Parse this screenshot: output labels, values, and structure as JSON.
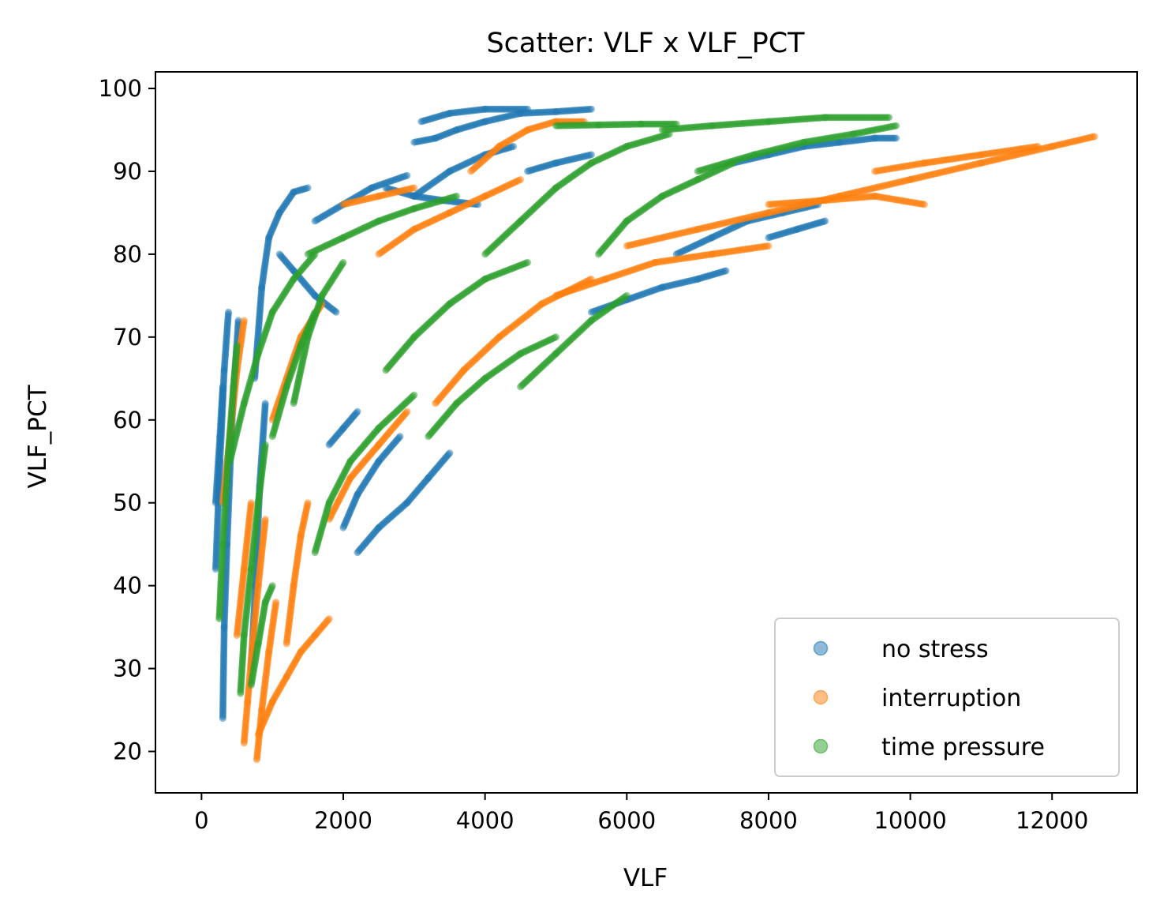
{
  "chart_data": {
    "type": "scatter",
    "title": "Scatter: VLF x VLF_PCT",
    "xlabel": "VLF",
    "ylabel": "VLF_PCT",
    "xlim": [
      -650,
      13200
    ],
    "ylim": [
      15,
      102
    ],
    "xticks": [
      0,
      2000,
      4000,
      6000,
      8000,
      10000,
      12000
    ],
    "xtick_labels": [
      "0",
      "2000",
      "4000",
      "6000",
      "8000",
      "10000",
      "12000"
    ],
    "yticks": [
      20,
      30,
      40,
      50,
      60,
      70,
      80,
      90,
      100
    ],
    "ytick_labels": [
      "20",
      "30",
      "40",
      "50",
      "60",
      "70",
      "80",
      "90",
      "100"
    ],
    "grid": false,
    "legend_position": "lower-right",
    "series": [
      {
        "name": "no stress",
        "color": "#1f77b4",
        "strokes": [
          [
            [
              200,
              42
            ],
            [
              260,
              55
            ],
            [
              320,
              66
            ],
            [
              380,
              73
            ]
          ],
          [
            [
              300,
              24
            ],
            [
              320,
              35
            ],
            [
              360,
              45
            ],
            [
              430,
              60
            ],
            [
              520,
              72
            ]
          ],
          [
            [
              200,
              50
            ],
            [
              260,
              58
            ],
            [
              300,
              64
            ]
          ],
          [
            [
              700,
              30
            ],
            [
              760,
              40
            ],
            [
              820,
              52
            ],
            [
              900,
              62
            ]
          ],
          [
            [
              750,
              65
            ],
            [
              850,
              76
            ],
            [
              950,
              82
            ],
            [
              1100,
              85
            ],
            [
              1300,
              87.5
            ],
            [
              1500,
              88
            ]
          ],
          [
            [
              1600,
              84
            ],
            [
              2000,
              86
            ],
            [
              2400,
              88
            ],
            [
              2900,
              89.5
            ]
          ],
          [
            [
              1100,
              80
            ],
            [
              1300,
              78
            ],
            [
              1600,
              75
            ],
            [
              1900,
              73
            ]
          ],
          [
            [
              1800,
              57
            ],
            [
              2000,
              59
            ],
            [
              2200,
              61
            ]
          ],
          [
            [
              2000,
              47
            ],
            [
              2200,
              51
            ],
            [
              2500,
              55
            ],
            [
              2800,
              58
            ]
          ],
          [
            [
              2200,
              44
            ],
            [
              2500,
              47
            ],
            [
              2900,
              50
            ],
            [
              3200,
              53
            ],
            [
              3500,
              56
            ]
          ],
          [
            [
              2600,
              88
            ],
            [
              3000,
              87
            ],
            [
              3400,
              86.5
            ],
            [
              3900,
              86
            ]
          ],
          [
            [
              3000,
              93.5
            ],
            [
              3300,
              94
            ],
            [
              3600,
              95
            ],
            [
              4000,
              96
            ],
            [
              4500,
              97
            ],
            [
              5000,
              97.2
            ],
            [
              5500,
              97.5
            ]
          ],
          [
            [
              3100,
              96
            ],
            [
              3500,
              97
            ],
            [
              4000,
              97.5
            ],
            [
              4600,
              97.5
            ]
          ],
          [
            [
              3000,
              87
            ],
            [
              3500,
              90
            ],
            [
              4000,
              92
            ],
            [
              4400,
              93
            ]
          ],
          [
            [
              4600,
              90
            ],
            [
              5000,
              91
            ],
            [
              5500,
              92
            ]
          ],
          [
            [
              5500,
              73
            ],
            [
              6000,
              74.5
            ],
            [
              6500,
              76
            ],
            [
              7000,
              77
            ],
            [
              7400,
              78
            ]
          ],
          [
            [
              6700,
              80
            ],
            [
              7200,
              82
            ],
            [
              7700,
              84
            ],
            [
              8200,
              85
            ],
            [
              8700,
              86
            ]
          ],
          [
            [
              8000,
              82
            ],
            [
              8400,
              83
            ],
            [
              8800,
              84
            ]
          ],
          [
            [
              7500,
              91
            ],
            [
              8000,
              92
            ],
            [
              8500,
              93
            ],
            [
              9000,
              93.5
            ],
            [
              9500,
              94
            ],
            [
              9800,
              94
            ]
          ]
        ]
      },
      {
        "name": "interruption",
        "color": "#ff7f0e",
        "strokes": [
          [
            [
              600,
              21
            ],
            [
              650,
              26
            ],
            [
              720,
              33
            ],
            [
              800,
              40
            ],
            [
              900,
              48
            ]
          ],
          [
            [
              780,
              19
            ],
            [
              850,
              25
            ],
            [
              950,
              32
            ],
            [
              1050,
              38
            ]
          ],
          [
            [
              800,
              22
            ],
            [
              1000,
              26
            ],
            [
              1200,
              29
            ],
            [
              1400,
              32
            ],
            [
              1600,
              34
            ],
            [
              1800,
              36
            ]
          ],
          [
            [
              300,
              50
            ],
            [
              400,
              58
            ],
            [
              500,
              66
            ],
            [
              600,
              72
            ]
          ],
          [
            [
              500,
              34
            ],
            [
              600,
              42
            ],
            [
              700,
              50
            ]
          ],
          [
            [
              1200,
              33
            ],
            [
              1300,
              40
            ],
            [
              1400,
              46
            ],
            [
              1500,
              50
            ]
          ],
          [
            [
              1000,
              60
            ],
            [
              1200,
              65
            ],
            [
              1400,
              70
            ],
            [
              1700,
              74
            ]
          ],
          [
            [
              1800,
              48
            ],
            [
              2100,
              53
            ],
            [
              2500,
              57
            ],
            [
              2900,
              61
            ]
          ],
          [
            [
              2500,
              80
            ],
            [
              3000,
              83
            ],
            [
              3500,
              85
            ],
            [
              4000,
              87
            ],
            [
              4500,
              89
            ]
          ],
          [
            [
              3800,
              90
            ],
            [
              4200,
              93
            ],
            [
              4600,
              95
            ],
            [
              5000,
              96
            ],
            [
              5400,
              96
            ]
          ],
          [
            [
              3300,
              62
            ],
            [
              3700,
              66
            ],
            [
              4200,
              70
            ],
            [
              4800,
              74
            ],
            [
              5500,
              77
            ]
          ],
          [
            [
              5000,
              75
            ],
            [
              5700,
              77
            ],
            [
              6400,
              79
            ],
            [
              7200,
              80
            ],
            [
              8000,
              81
            ]
          ],
          [
            [
              6000,
              81
            ],
            [
              7000,
              83
            ],
            [
              8000,
              85
            ],
            [
              9000,
              87
            ],
            [
              10000,
              89
            ],
            [
              11000,
              91
            ],
            [
              12000,
              93
            ],
            [
              12600,
              94.2
            ]
          ],
          [
            [
              8000,
              86
            ],
            [
              8800,
              86.5
            ],
            [
              9500,
              87
            ],
            [
              10200,
              86
            ]
          ],
          [
            [
              9500,
              90
            ],
            [
              10200,
              91
            ],
            [
              11000,
              92
            ],
            [
              11800,
              93
            ]
          ],
          [
            [
              2000,
              86
            ],
            [
              2500,
              87
            ],
            [
              3000,
              88
            ]
          ]
        ]
      },
      {
        "name": "time pressure",
        "color": "#2ca02c",
        "strokes": [
          [
            [
              250,
              36
            ],
            [
              300,
              45
            ],
            [
              380,
              56
            ],
            [
              450,
              64
            ],
            [
              500,
              69
            ]
          ],
          [
            [
              550,
              27
            ],
            [
              600,
              34
            ],
            [
              700,
              42
            ],
            [
              800,
              50
            ],
            [
              900,
              57
            ]
          ],
          [
            [
              700,
              28
            ],
            [
              800,
              33
            ],
            [
              900,
              38
            ],
            [
              1000,
              40
            ]
          ],
          [
            [
              400,
              55
            ],
            [
              600,
              62
            ],
            [
              800,
              68
            ],
            [
              1000,
              73
            ],
            [
              1300,
              77
            ],
            [
              1600,
              80
            ]
          ],
          [
            [
              1300,
              62
            ],
            [
              1500,
              70
            ],
            [
              1700,
              75
            ],
            [
              2000,
              79
            ]
          ],
          [
            [
              1600,
              44
            ],
            [
              1800,
              50
            ],
            [
              2100,
              55
            ],
            [
              2500,
              59
            ],
            [
              3000,
              63
            ]
          ],
          [
            [
              1500,
              80
            ],
            [
              2000,
              82
            ],
            [
              2500,
              84
            ],
            [
              3000,
              85.5
            ],
            [
              3600,
              87
            ]
          ],
          [
            [
              2600,
              66
            ],
            [
              3000,
              70
            ],
            [
              3500,
              74
            ],
            [
              4000,
              77
            ],
            [
              4600,
              79
            ]
          ],
          [
            [
              3200,
              58
            ],
            [
              3600,
              62
            ],
            [
              4000,
              65
            ],
            [
              4500,
              68
            ],
            [
              5000,
              70
            ]
          ],
          [
            [
              4000,
              80
            ],
            [
              4500,
              84
            ],
            [
              5000,
              88
            ],
            [
              5500,
              91
            ],
            [
              6000,
              93
            ],
            [
              6600,
              94.5
            ]
          ],
          [
            [
              5000,
              95.5
            ],
            [
              5600,
              95.6
            ],
            [
              6200,
              95.7
            ],
            [
              6700,
              95.7
            ]
          ],
          [
            [
              5600,
              80
            ],
            [
              6000,
              84
            ],
            [
              6500,
              87
            ],
            [
              7000,
              89
            ],
            [
              7500,
              91
            ]
          ],
          [
            [
              6500,
              95
            ],
            [
              7200,
              95.5
            ],
            [
              8000,
              96
            ],
            [
              8800,
              96.5
            ],
            [
              9700,
              96.5
            ]
          ],
          [
            [
              7000,
              90
            ],
            [
              7800,
              92
            ],
            [
              8500,
              93.5
            ],
            [
              9200,
              94.5
            ],
            [
              9800,
              95.5
            ]
          ],
          [
            [
              4500,
              64
            ],
            [
              5000,
              68
            ],
            [
              5500,
              72
            ],
            [
              6000,
              75
            ]
          ],
          [
            [
              1000,
              58
            ],
            [
              1200,
              64
            ],
            [
              1400,
              69
            ],
            [
              1600,
              73
            ]
          ]
        ]
      }
    ]
  }
}
